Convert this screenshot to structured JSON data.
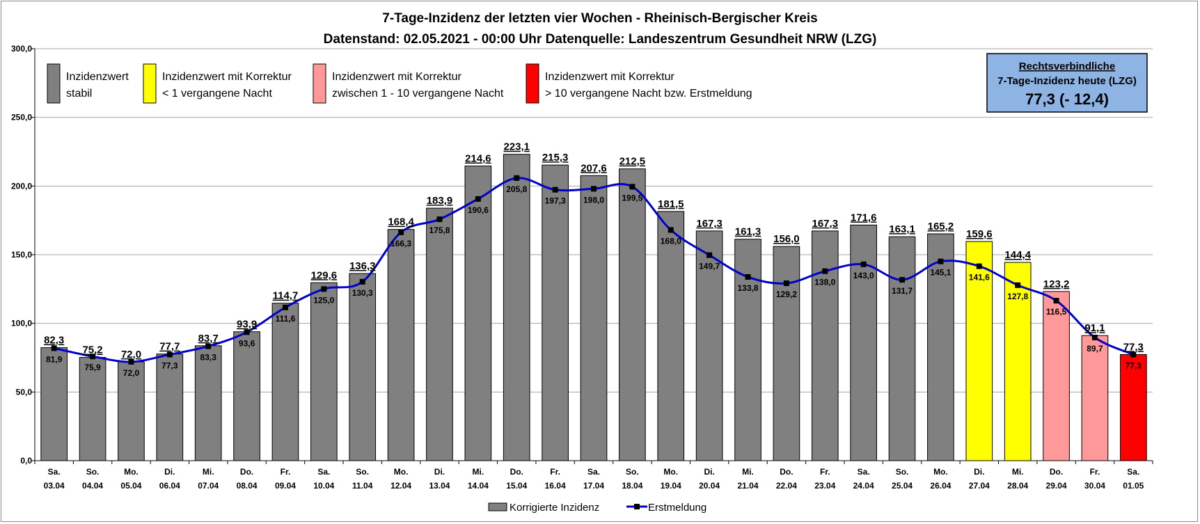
{
  "title_line1": "7-Tage-Inzidenz der letzten vier Wochen - Rheinisch-Bergischer Kreis",
  "title_line2": "Datenstand: 02.05.2021 - 00:00 Uhr Datenquelle: Landeszentrum Gesundheit NRW (LZG)",
  "legend_top": [
    {
      "lines": [
        "Inzidenzwert",
        "stabil"
      ],
      "color": "#808080"
    },
    {
      "lines": [
        "Inzidenzwert mit Korrektur",
        "< 1 vergangene Nacht"
      ],
      "color": "#FFFF00"
    },
    {
      "lines": [
        "Inzidenzwert mit Korrektur",
        "zwischen 1 - 10 vergangene Nacht"
      ],
      "color": "#FF9999"
    },
    {
      "lines": [
        "Inzidenzwert mit Korrektur",
        "> 10 vergangene Nacht bzw. Erstmeldung"
      ],
      "color": "#FF0000"
    }
  ],
  "info_box": {
    "line1": "Rechtsverbindliche",
    "line2": "7-Tage-Inzidenz heute (LZG)",
    "line3": "77,3 (- 12,4)",
    "bg_color": "#8DB4E2"
  },
  "bottom_legend": {
    "bar_label": "Korrigierte Inzidenz",
    "line_label": "Erstmeldung"
  },
  "chart_data": {
    "type": "bar",
    "title": "7-Tage-Inzidenz der letzten vier Wochen - Rheinisch-Bergischer Kreis",
    "ylim": [
      0,
      300
    ],
    "yticks": [
      "0,0",
      "50,0",
      "100,0",
      "150,0",
      "200,0",
      "250,0",
      "300,0"
    ],
    "grid": true,
    "categories_day": [
      "Sa.",
      "So.",
      "Mo.",
      "Di.",
      "Mi.",
      "Do.",
      "Fr.",
      "Sa.",
      "So.",
      "Mo.",
      "Di.",
      "Mi.",
      "Do.",
      "Fr.",
      "Sa.",
      "So.",
      "Mo.",
      "Di.",
      "Mi.",
      "Do.",
      "Fr.",
      "Sa.",
      "So.",
      "Mo.",
      "Di.",
      "Mi.",
      "Do.",
      "Fr.",
      "Sa."
    ],
    "categories_date": [
      "03.04",
      "04.04",
      "05.04",
      "06.04",
      "07.04",
      "08.04",
      "09.04",
      "10.04",
      "11.04",
      "12.04",
      "13.04",
      "14.04",
      "15.04",
      "16.04",
      "17.04",
      "18.04",
      "19.04",
      "20.04",
      "21.04",
      "22.04",
      "23.04",
      "24.04",
      "25.04",
      "26.04",
      "27.04",
      "28.04",
      "29.04",
      "30.04",
      "01.05"
    ],
    "series": [
      {
        "name": "Korrigierte Inzidenz",
        "type": "bar",
        "values": [
          82.3,
          75.2,
          72.0,
          77.7,
          83.7,
          93.9,
          114.7,
          129.6,
          136.3,
          168.4,
          183.9,
          214.6,
          223.1,
          215.3,
          207.6,
          212.5,
          181.5,
          167.3,
          161.3,
          156.0,
          167.3,
          171.6,
          163.1,
          165.2,
          159.6,
          144.4,
          123.2,
          91.1,
          77.3
        ],
        "labels": [
          "82,3",
          "75,2",
          "72,0",
          "77,7",
          "83,7",
          "93,9",
          "114,7",
          "129,6",
          "136,3",
          "168,4",
          "183,9",
          "214,6",
          "223,1",
          "215,3",
          "207,6",
          "212,5",
          "181,5",
          "167,3",
          "161,3",
          "156,0",
          "167,3",
          "171,6",
          "163,1",
          "165,2",
          "159,6",
          "144,4",
          "123,2",
          "91,1",
          "77,3"
        ],
        "colors": [
          "#808080",
          "#808080",
          "#808080",
          "#808080",
          "#808080",
          "#808080",
          "#808080",
          "#808080",
          "#808080",
          "#808080",
          "#808080",
          "#808080",
          "#808080",
          "#808080",
          "#808080",
          "#808080",
          "#808080",
          "#808080",
          "#808080",
          "#808080",
          "#808080",
          "#808080",
          "#808080",
          "#808080",
          "#FFFF00",
          "#FFFF00",
          "#FF9999",
          "#FF9999",
          "#FF0000"
        ]
      },
      {
        "name": "Erstmeldung",
        "type": "line",
        "color": "#0000CC",
        "values": [
          81.9,
          75.9,
          72.0,
          77.3,
          83.3,
          93.6,
          111.6,
          125.0,
          130.3,
          166.3,
          175.8,
          190.6,
          205.8,
          197.3,
          198.0,
          199.5,
          168.0,
          149.7,
          133.8,
          129.2,
          138.0,
          143.0,
          131.7,
          145.1,
          141.6,
          127.8,
          116.5,
          89.7,
          77.3
        ],
        "labels": [
          "81,9",
          "75,9",
          "72,0",
          "77,3",
          "83,3",
          "93,6",
          "111,6",
          "125,0",
          "130,3",
          "166,3",
          "175,8",
          "190,6",
          "205,8",
          "197,3",
          "198,0",
          "199,5",
          "168,0",
          "149,7",
          "133,8",
          "129,2",
          "138,0",
          "143,0",
          "131,7",
          "145,1",
          "141,6",
          "127,8",
          "116,5",
          "89,7",
          "77,3"
        ]
      }
    ]
  }
}
